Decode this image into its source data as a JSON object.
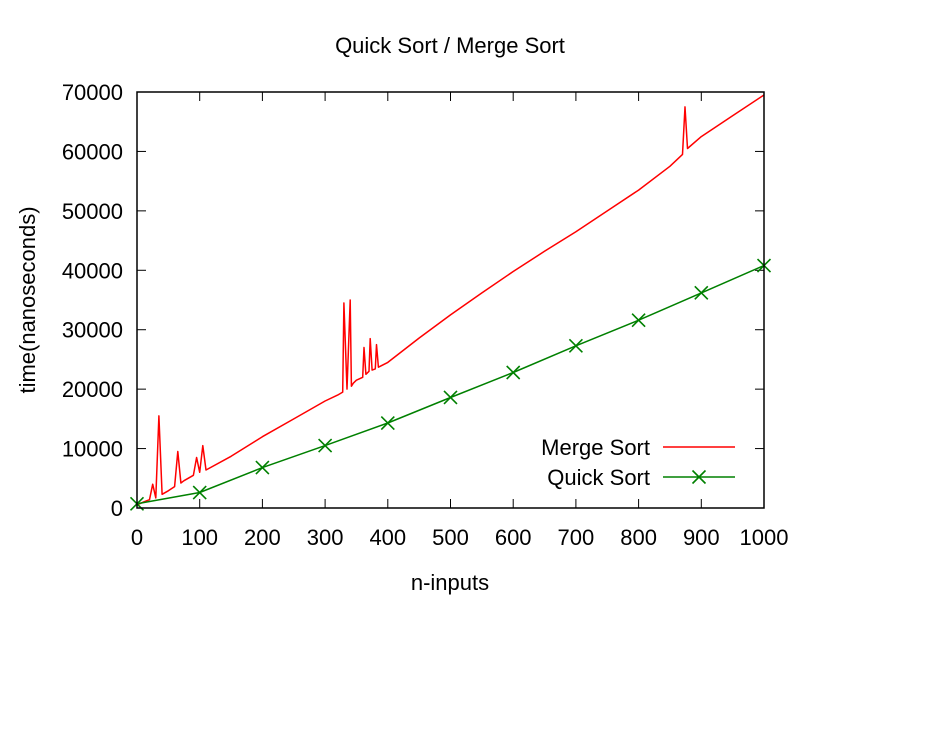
{
  "chart_data": {
    "type": "line",
    "title": "Quick Sort / Merge Sort",
    "xlabel": "n-inputs",
    "ylabel": "time(nanoseconds)",
    "xlim": [
      0,
      1000
    ],
    "ylim": [
      0,
      70000
    ],
    "x_ticks": [
      "0",
      "100",
      "200",
      "300",
      "400",
      "500",
      "600",
      "700",
      "800",
      "900",
      "1000"
    ],
    "y_ticks": [
      "0",
      "10000",
      "20000",
      "30000",
      "40000",
      "50000",
      "60000",
      "70000"
    ],
    "grid": false,
    "legend_position": "bottom-right",
    "series": [
      {
        "name": "Merge Sort",
        "color": "#ff0000",
        "marker": "none",
        "x": [
          0,
          10,
          20,
          25,
          30,
          35,
          40,
          50,
          60,
          65,
          70,
          75,
          90,
          95,
          100,
          105,
          110,
          150,
          200,
          250,
          300,
          320,
          328,
          330,
          335,
          340,
          342,
          345,
          350,
          360,
          362,
          365,
          370,
          372,
          375,
          380,
          382,
          385,
          400,
          450,
          500,
          550,
          600,
          650,
          700,
          750,
          800,
          850,
          870,
          874,
          878,
          900,
          950,
          1000
        ],
        "y": [
          500,
          1000,
          1400,
          4000,
          1700,
          15500,
          2300,
          2900,
          3600,
          9500,
          4200,
          4600,
          5500,
          8500,
          6000,
          10500,
          6400,
          8700,
          12000,
          15000,
          18000,
          19000,
          19500,
          34500,
          20000,
          35000,
          20500,
          21000,
          21500,
          22000,
          27000,
          22500,
          23000,
          28500,
          23200,
          23400,
          27500,
          23700,
          24500,
          28600,
          32500,
          36200,
          39800,
          43200,
          46500,
          50000,
          53500,
          57500,
          59500,
          67500,
          60500,
          62500,
          66000,
          69500
        ]
      },
      {
        "name": "Quick Sort",
        "color": "#008000",
        "marker": "x",
        "x": [
          0,
          100,
          200,
          300,
          400,
          500,
          600,
          700,
          800,
          900,
          1000
        ],
        "y": [
          700,
          2600,
          6800,
          10500,
          14300,
          18600,
          22800,
          27300,
          31600,
          36200,
          40800
        ]
      }
    ]
  }
}
